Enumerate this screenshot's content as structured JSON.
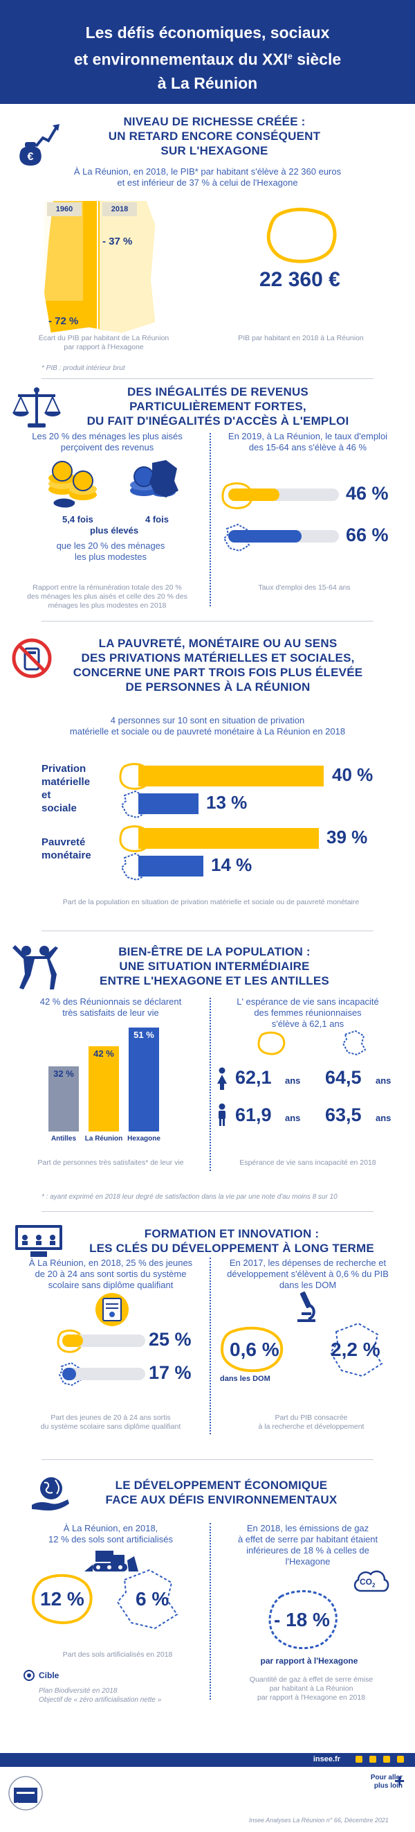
{
  "header": {
    "line1": "Les défis économiques, sociaux",
    "line2a": "et environnementaux du XXI",
    "line2sup": "e",
    "line2b": " siècle",
    "line3": "à La Réunion"
  },
  "s1": {
    "title1": "NIVEAU DE RICHESSE CRÉÉE :",
    "title2": "UN RETARD ENCORE CONSÉQUENT",
    "title3": "SUR L'HEXAGONE",
    "intro1": "À La Réunion, en 2018, le PIB* par habitant s'élève à 22 360 euros",
    "intro2": "et est inférieur de 37 % à celui de l'Hexagone",
    "year1": "1960",
    "year2": "2018",
    "pct1": "- 72 %",
    "pct2": "- 37 %",
    "value": "22 360 €",
    "cap1a": "Écart du PIB par habitant de La Réunion",
    "cap1b": "par rapport à l'Hexagone",
    "cap2": "PIB par habitant en 2018 à La Réunion",
    "note": "*  PIB : produit intérieur brut"
  },
  "s2": {
    "title1": "DES INÉGALITÉS DE REVENUS",
    "title2": "PARTICULIÈREMENT FORTES,",
    "title3": "DU FAIT D'INÉGALITÉS D'ACCÈS À L'EMPLOI",
    "left1": "Les 20 % des ménages les plus aisés",
    "left2": "perçoivent des revenus",
    "r1": "5,4 fois",
    "r2": "4 fois",
    "more": "plus élevés",
    "less1": "que les 20 % des ménages",
    "less2": "les plus modestes",
    "capl1": "Rapport entre la rémunération totale des 20 %",
    "capl2": "des ménages les plus aisés et celle des 20 % des",
    "capl3": "ménages les plus modestes en 2018",
    "right1": "En 2019, à La Réunion, le taux d'emploi",
    "right2": "des 15-64 ans s'élève à 46 %",
    "e1": "46 %",
    "e2": "66 %",
    "capr": "Taux d'emploi des 15-64 ans"
  },
  "s3": {
    "title1": "LA PAUVRETÉ, MONÉTAIRE OU AU SENS",
    "title2": "DES PRIVATIONS MATÉRIELLES ET SOCIALES,",
    "title3": "CONCERNE UNE PART TROIS FOIS PLUS ÉLEVÉE",
    "title4": "DE PERSONNES À LA RÉUNION",
    "intro1": "4 personnes sur 10 sont en situation de privation",
    "intro2": "matérielle et sociale ou de pauvreté monétaire à La Réunion en 2018",
    "lab1a": "Privation",
    "lab1b": "matérielle",
    "lab1c": "et",
    "lab1d": "sociale",
    "lab2a": "Pauvreté",
    "lab2b": "monétaire",
    "v1": "40 %",
    "v2": "13 %",
    "v3": "39 %",
    "v4": "14 %",
    "cap": "Part de la population en situation de privation matérielle et sociale ou de pauvreté monétaire"
  },
  "s4": {
    "title1": "BIEN-ÊTRE DE LA POPULATION :",
    "title2": "UNE SITUATION INTERMÉDIAIRE",
    "title3": "ENTRE L'HEXAGONE ET LES ANTILLES",
    "left1": "42 % des Réunionnais se déclarent",
    "left2": "très satisfaits de leur vie",
    "b1": "32 %",
    "b2": "42 %",
    "b3": "51 %",
    "n1": "Antilles",
    "n2": "La Réunion",
    "n3": "Hexagone",
    "capl": "Part de personnes très satisfaites* de leur vie",
    "right1": "L' espérance de vie sans incapacité",
    "right2": "des femmes réunionnaises",
    "right3": "s'élève à 62,1 ans",
    "f1": "62,1",
    "f2": "64,5",
    "m1": "61,9",
    "m2": "63,5",
    "unit": "ans",
    "capr": "Espérance de vie sans incapacité en 2018",
    "note": "* : ayant exprimé en 2018 leur degré de satisfaction dans la vie par une note d'au moins 8 sur 10"
  },
  "s5": {
    "title1": "FORMATION ET INNOVATION :",
    "title2": "LES CLÉS DU DÉVELOPPEMENT À LONG TERME",
    "left1": "À La Réunion, en 2018, 25 % des jeunes",
    "left2": "de 20 à 24 ans sont sortis du système",
    "left3": "scolaire sans diplôme qualifiant",
    "v1": "25 %",
    "v2": "17 %",
    "capl1": "Part des jeunes de 20 à 24 ans sortis",
    "capl2": "du système scolaire sans diplôme qualifiant",
    "right1": "En 2017, les dépenses de recherche et",
    "right2": "développement s'élèvent à 0,6 % du PIB",
    "right3": "dans les DOM",
    "r1": "0,6 %",
    "r2": "2,2 %",
    "dom": "dans les DOM",
    "capr1": "Part du PIB consacrée",
    "capr2": "à la recherche et développement"
  },
  "s6": {
    "title1": "LE DÉVELOPPEMENT ÉCONOMIQUE",
    "title2": "FACE AUX DÉFIS ENVIRONNEMENTAUX",
    "left1": "À La Réunion, en 2018,",
    "left2": "12 % des sols sont artificialisés",
    "v1": "12 %",
    "v2": "6 %",
    "capl": "Part des sols artificialisés en 2018",
    "cible": "Cible",
    "plan1": "Plan Biodiversité en 2018",
    "plan2": "Objectif de « zéro artificialisation nette »",
    "right1": "En 2018, les émissions de gaz",
    "right2": "à effet de serre par habitant étaient",
    "right3": "inférieures de 18 % à celles de",
    "right4": "l'Hexagone",
    "co2": "CO",
    "co2sub": "2",
    "r1": "- 18 %",
    "rap": "par rapport à l'Hexagone",
    "capr1": "Quantité de gaz à effet de serre émise",
    "capr2": "par habitant à La Réunion",
    "capr3": "par rapport à l'Hexagone en 2018"
  },
  "footer": {
    "site": "insee.fr",
    "more1": "Pour aller",
    "more2": "plus loin",
    "plus": "+",
    "logo": "Insee",
    "ref": "Insee Analyses La Réunion n° 66, Décembre 2021"
  },
  "colors": {
    "navy": "#1d3b8b",
    "yellow": "#ffc000",
    "blue": "#2d5bbf",
    "grey": "#e3e5ea"
  }
}
